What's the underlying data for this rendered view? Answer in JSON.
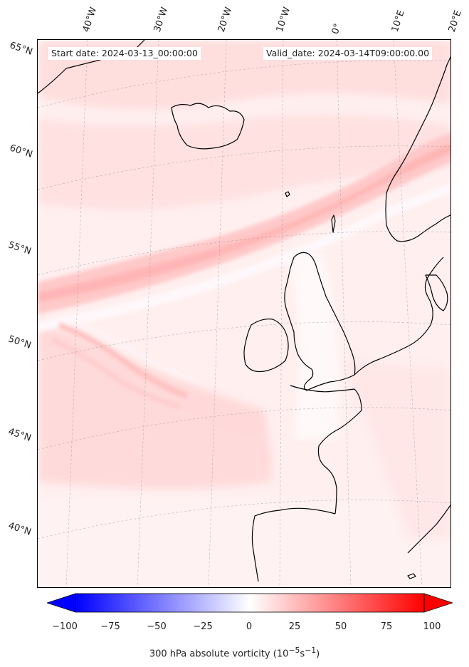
{
  "header": {
    "start_date": "Start date: 2024-03-13_00:00:00",
    "valid_date": "Valid_date: 2024-03-14T09:00:00.00"
  },
  "latitude_labels": [
    "65°N",
    "60°N",
    "55°N",
    "50°N",
    "45°N",
    "40°N"
  ],
  "longitude_labels": [
    "40°W",
    "30°W",
    "20°W",
    "10°W",
    "0°",
    "10°E",
    "20°E"
  ],
  "colorbar": {
    "ticks": [
      "−100",
      "−75",
      "−50",
      "−25",
      "0",
      "25",
      "50",
      "75",
      "100"
    ],
    "label_prefix": "300 hPa absolute vorticity (10",
    "label_exp1": "−5",
    "label_mid": "s",
    "label_exp2": "−1",
    "label_suffix": ")",
    "min": -100,
    "max": 100,
    "negative_color": "#0000ff",
    "positive_color": "#ff0000"
  },
  "colors": {
    "coastline": "#000000",
    "field_background": "#fff6f6"
  }
}
